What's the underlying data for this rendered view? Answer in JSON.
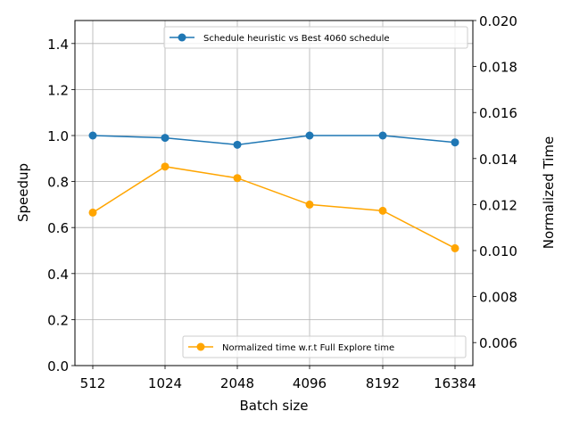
{
  "chart_data": {
    "type": "line",
    "categories": [
      "512",
      "1024",
      "2048",
      "4096",
      "8192",
      "16384"
    ],
    "xlabel": "Batch size",
    "grid": true,
    "left_axis": {
      "label": "Speedup",
      "ylim": [
        0.0,
        1.5
      ],
      "ticks": [
        "0.0",
        "0.2",
        "0.4",
        "0.6",
        "0.8",
        "1.0",
        "1.2",
        "1.4"
      ],
      "tick_values": [
        0.0,
        0.2,
        0.4,
        0.6,
        0.8,
        1.0,
        1.2,
        1.4
      ]
    },
    "right_axis": {
      "label": "Normalized Time",
      "ylim": [
        0.005,
        0.02
      ],
      "ticks": [
        "0.006",
        "0.008",
        "0.010",
        "0.012",
        "0.014",
        "0.016",
        "0.018",
        "0.020"
      ],
      "tick_values": [
        0.006,
        0.008,
        0.01,
        0.012,
        0.014,
        0.016,
        0.018,
        0.02
      ]
    },
    "series": [
      {
        "name": "Schedule heuristic vs Best 4060 schedule",
        "axis": "left",
        "color": "#1f77b4",
        "values": [
          1.0,
          0.99,
          0.96,
          1.0,
          1.0,
          0.97
        ],
        "legend_position": "top-right"
      },
      {
        "name": "Normalized time w.r.t Full Explore time",
        "axis": "right",
        "color": "#ffa500",
        "values": [
          0.01165,
          0.01365,
          0.01315,
          0.012,
          0.01173,
          0.0101
        ],
        "legend_position": "bottom-right"
      }
    ]
  }
}
